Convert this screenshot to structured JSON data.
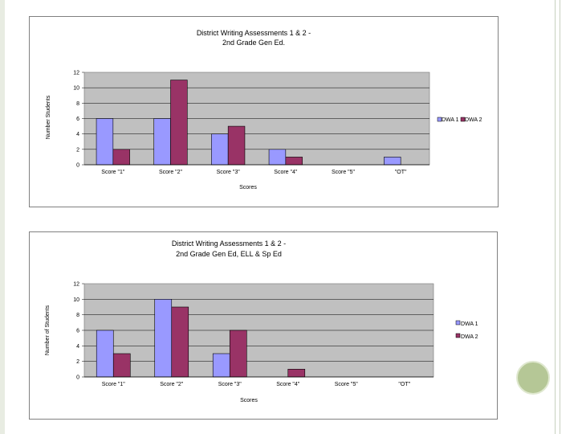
{
  "colors": {
    "dwa1": "#9999ff",
    "dwa2": "#993366",
    "plot_bg": "#c0c0c0",
    "accent_circle": "#b5c796"
  },
  "chart_data": [
    {
      "type": "bar",
      "title_line1": "District Writing Assessments 1 & 2 -",
      "title_line2": "2nd Grade  Gen Ed.",
      "xlabel": "Scores",
      "ylabel": "Number Students",
      "categories": [
        "Score \"1\"",
        "Score \"2\"",
        "Score \"3\"",
        "Score \"4\"",
        "Score \"5\"",
        "\"OT\""
      ],
      "series": [
        {
          "name": "DWA 1",
          "values": [
            6,
            6,
            4,
            2,
            0,
            1
          ]
        },
        {
          "name": "DWA 2",
          "values": [
            2,
            11,
            5,
            1,
            0,
            0
          ]
        }
      ],
      "ylim": [
        0,
        12
      ],
      "yticks": [
        0,
        2,
        4,
        6,
        8,
        10,
        12
      ],
      "grid": true,
      "legend": "right-inline"
    },
    {
      "type": "bar",
      "title_line1": "District Writing Assessments 1 & 2 -",
      "title_line2": "2nd Grade Gen Ed, ELL & Sp Ed",
      "xlabel": "Scores",
      "ylabel": "Number of Students",
      "categories": [
        "Score \"1\"",
        "Score \"2\"",
        "Score \"3\"",
        "Score \"4\"",
        "Score \"5\"",
        "\"OT\""
      ],
      "series": [
        {
          "name": "DWA 1",
          "values": [
            6,
            10,
            3,
            0,
            0,
            0
          ]
        },
        {
          "name": "DWA 2",
          "values": [
            3,
            9,
            6,
            1,
            0,
            0
          ]
        }
      ],
      "ylim": [
        0,
        12
      ],
      "yticks": [
        0,
        2,
        4,
        6,
        8,
        10,
        12
      ],
      "grid": true,
      "legend": "right-stacked"
    }
  ]
}
